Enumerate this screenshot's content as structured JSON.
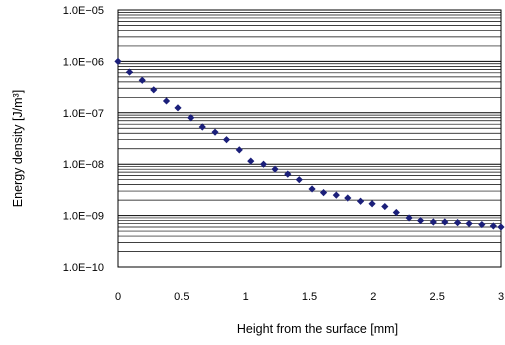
{
  "chart_data": {
    "type": "scatter",
    "title": "",
    "xlabel": "Height from the surface [mm]",
    "ylabel": "Energy density [J/m³]",
    "y_scale": "log",
    "xlim": [
      0,
      3
    ],
    "ylim": [
      1e-10,
      1e-05
    ],
    "grid": {
      "x": false,
      "y": true,
      "y_minor": true
    },
    "legend": "none",
    "marker_color": "#1b1f7a",
    "marker_shape": "diamond",
    "x_ticks": [
      0,
      0.5,
      1,
      1.5,
      2,
      2.5,
      3
    ],
    "x_tick_labels": [
      "0",
      "0.5",
      "1",
      "1.5",
      "2",
      "2.5",
      "3"
    ],
    "y_ticks": [
      1e-10,
      1e-09,
      1e-08,
      1e-07,
      1e-06,
      1e-05
    ],
    "y_tick_labels": [
      "1.0E−10",
      "1.0E−09",
      "1.0E−08",
      "1.0E−07",
      "1.0E−06",
      "1.0E−05"
    ],
    "x": [
      0,
      0.09,
      0.19,
      0.28,
      0.38,
      0.47,
      0.57,
      0.66,
      0.76,
      0.85,
      0.95,
      1.04,
      1.14,
      1.23,
      1.33,
      1.42,
      1.52,
      1.61,
      1.71,
      1.8,
      1.9,
      1.99,
      2.09,
      2.18,
      2.28,
      2.37,
      2.47,
      2.56,
      2.66,
      2.75,
      2.85,
      2.94,
      3.0
    ],
    "y": [
      1e-06,
      6.2e-07,
      4.3e-07,
      2.8e-07,
      1.7e-07,
      1.25e-07,
      8e-08,
      5.3e-08,
      4.2e-08,
      3e-08,
      1.9e-08,
      1.15e-08,
      1e-08,
      8e-09,
      6.4e-09,
      5e-09,
      3.3e-09,
      2.8e-09,
      2.5e-09,
      2.2e-09,
      1.9e-09,
      1.7e-09,
      1.5e-09,
      1.15e-09,
      9e-10,
      8e-10,
      7.5e-10,
      7.5e-10,
      7.3e-10,
      7e-10,
      6.7e-10,
      6.3e-10,
      6e-10
    ]
  }
}
